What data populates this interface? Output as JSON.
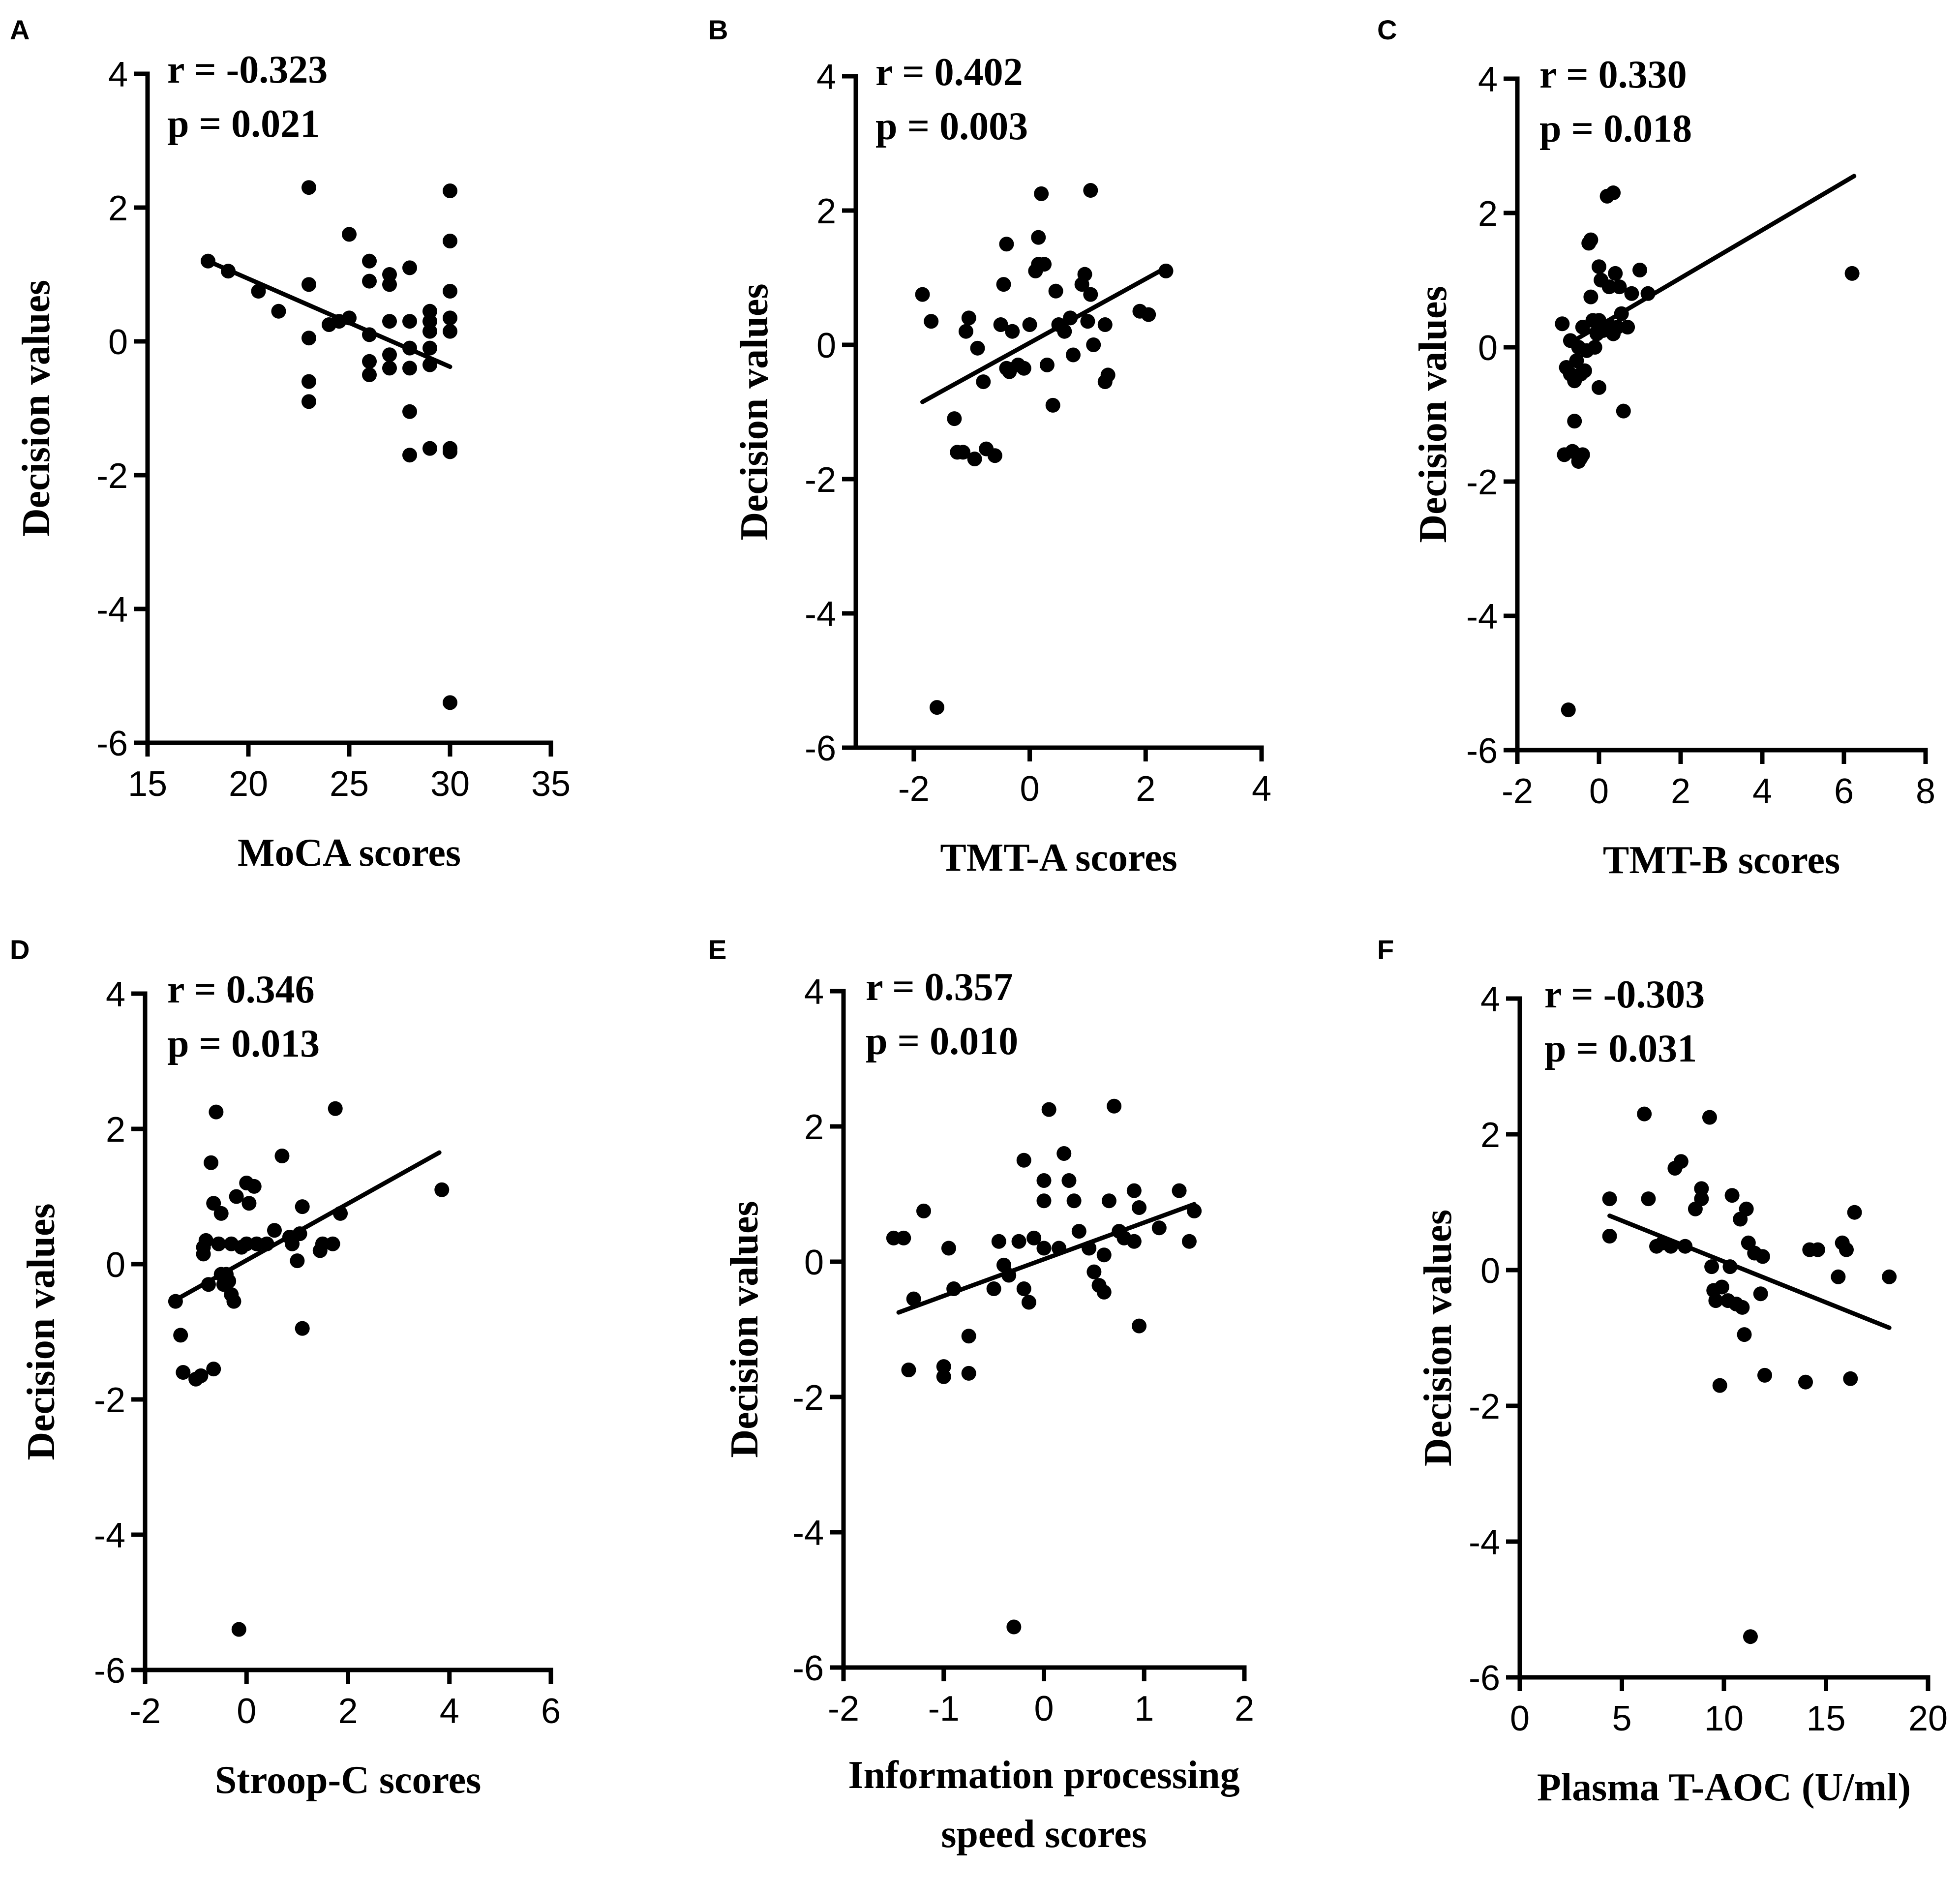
{
  "chart_data": [
    {
      "panel": "A",
      "type": "scatter",
      "r_text": "r = -0.323",
      "p_text": "p = 0.021",
      "xlabel": "MoCA scores",
      "ylabel": "Decision values",
      "xlim": [
        15,
        35
      ],
      "ylim": [
        -6,
        4
      ],
      "xticks": [
        15,
        20,
        25,
        30,
        35
      ],
      "yticks": [
        -6,
        -4,
        -2,
        0,
        2,
        4
      ],
      "regression": [
        [
          18,
          1.2
        ],
        [
          30,
          -0.38
        ]
      ],
      "points": [
        [
          18,
          1.2
        ],
        [
          19,
          1.05
        ],
        [
          20.5,
          0.75
        ],
        [
          21.5,
          0.45
        ],
        [
          23,
          2.3
        ],
        [
          23,
          0.85
        ],
        [
          23,
          0.05
        ],
        [
          23,
          -0.6
        ],
        [
          23,
          -0.9
        ],
        [
          24,
          0.25
        ],
        [
          24.5,
          0.3
        ],
        [
          25,
          1.6
        ],
        [
          25,
          0.35
        ],
        [
          26,
          1.2
        ],
        [
          26,
          0.9
        ],
        [
          26,
          0.1
        ],
        [
          26,
          -0.3
        ],
        [
          26,
          -0.5
        ],
        [
          27,
          1.0
        ],
        [
          27,
          0.85
        ],
        [
          27,
          0.3
        ],
        [
          27,
          -0.2
        ],
        [
          27,
          -0.4
        ],
        [
          28,
          1.1
        ],
        [
          28,
          0.3
        ],
        [
          28,
          -0.1
        ],
        [
          28,
          -0.4
        ],
        [
          28,
          -1.05
        ],
        [
          28,
          -1.7
        ],
        [
          29,
          0.45
        ],
        [
          29,
          0.3
        ],
        [
          29,
          0.15
        ],
        [
          29,
          -0.1
        ],
        [
          29,
          -0.35
        ],
        [
          29,
          -1.6
        ],
        [
          30,
          2.25
        ],
        [
          30,
          1.5
        ],
        [
          30,
          0.75
        ],
        [
          30,
          0.35
        ],
        [
          30,
          0.15
        ],
        [
          30,
          -1.6
        ],
        [
          30,
          -1.65
        ],
        [
          30,
          -5.4
        ]
      ]
    },
    {
      "panel": "B",
      "type": "scatter",
      "r_text": "r = 0.402",
      "p_text": "p = 0.003",
      "xlabel": "TMT-A scores",
      "ylabel": "Decision values",
      "xlim": [
        -3,
        4
      ],
      "ylim": [
        -6,
        4
      ],
      "xticks": [
        -2,
        0,
        2,
        4
      ],
      "yticks": [
        -6,
        -4,
        -2,
        0,
        2,
        4
      ],
      "regression": [
        [
          -1.85,
          -0.85
        ],
        [
          2.25,
          1.1
        ]
      ],
      "points": [
        [
          -1.85,
          0.75
        ],
        [
          -1.7,
          0.35
        ],
        [
          -1.6,
          -5.4
        ],
        [
          -1.3,
          -1.1
        ],
        [
          -1.25,
          -1.6
        ],
        [
          -1.15,
          -1.6
        ],
        [
          -1.1,
          0.2
        ],
        [
          -1.05,
          0.4
        ],
        [
          -0.95,
          -1.7
        ],
        [
          -0.9,
          -0.05
        ],
        [
          -0.8,
          -0.55
        ],
        [
          -0.75,
          -1.55
        ],
        [
          -0.6,
          -1.65
        ],
        [
          -0.5,
          0.3
        ],
        [
          -0.45,
          0.9
        ],
        [
          -0.4,
          1.5
        ],
        [
          -0.4,
          -0.35
        ],
        [
          -0.35,
          -0.4
        ],
        [
          -0.3,
          0.2
        ],
        [
          -0.2,
          -0.3
        ],
        [
          -0.1,
          -0.35
        ],
        [
          0,
          0.3
        ],
        [
          0.1,
          1.1
        ],
        [
          0.15,
          1.6
        ],
        [
          0.15,
          1.2
        ],
        [
          0.2,
          2.25
        ],
        [
          0.25,
          1.2
        ],
        [
          0.3,
          -0.3
        ],
        [
          0.4,
          -0.9
        ],
        [
          0.45,
          0.8
        ],
        [
          0.5,
          0.3
        ],
        [
          0.6,
          0.2
        ],
        [
          0.7,
          0.4
        ],
        [
          0.75,
          -0.15
        ],
        [
          0.9,
          0.9
        ],
        [
          0.95,
          1.05
        ],
        [
          1.0,
          0.35
        ],
        [
          1.05,
          0.75
        ],
        [
          1.05,
          2.3
        ],
        [
          1.1,
          0.0
        ],
        [
          1.3,
          0.3
        ],
        [
          1.3,
          -0.55
        ],
        [
          1.35,
          -0.45
        ],
        [
          1.9,
          0.5
        ],
        [
          2.05,
          0.45
        ],
        [
          2.35,
          1.1
        ]
      ]
    },
    {
      "panel": "C",
      "type": "scatter",
      "r_text": "r = 0.330",
      "p_text": "p = 0.018",
      "xlabel": "TMT-B scores",
      "ylabel": "Decision values",
      "xlim": [
        -2,
        8
      ],
      "ylim": [
        -6,
        4
      ],
      "xticks": [
        -2,
        0,
        2,
        4,
        6,
        8
      ],
      "yticks": [
        -6,
        -4,
        -2,
        0,
        2,
        4
      ],
      "regression": [
        [
          -0.75,
          0.05
        ],
        [
          6.25,
          2.55
        ]
      ],
      "points": [
        [
          -0.9,
          0.35
        ],
        [
          -0.85,
          -1.6
        ],
        [
          -0.8,
          -0.3
        ],
        [
          -0.75,
          -5.4
        ],
        [
          -0.7,
          -0.4
        ],
        [
          -0.7,
          0.1
        ],
        [
          -0.65,
          -1.55
        ],
        [
          -0.6,
          -1.1
        ],
        [
          -0.6,
          -0.5
        ],
        [
          -0.55,
          -0.2
        ],
        [
          -0.5,
          -1.7
        ],
        [
          -0.5,
          0.0
        ],
        [
          -0.45,
          -1.65
        ],
        [
          -0.45,
          -0.4
        ],
        [
          -0.4,
          -1.6
        ],
        [
          -0.4,
          0.3
        ],
        [
          -0.35,
          -0.35
        ],
        [
          -0.3,
          -0.05
        ],
        [
          -0.25,
          1.55
        ],
        [
          -0.2,
          0.75
        ],
        [
          -0.2,
          1.6
        ],
        [
          -0.15,
          0.4
        ],
        [
          -0.1,
          0.0
        ],
        [
          -0.05,
          0.2
        ],
        [
          0,
          1.2
        ],
        [
          0,
          0.4
        ],
        [
          0,
          -0.6
        ],
        [
          0.05,
          1.0
        ],
        [
          0.1,
          0.25
        ],
        [
          0.15,
          0.3
        ],
        [
          0.2,
          2.25
        ],
        [
          0.25,
          0.9
        ],
        [
          0.3,
          0.3
        ],
        [
          0.35,
          0.2
        ],
        [
          0.35,
          2.3
        ],
        [
          0.4,
          1.1
        ],
        [
          0.45,
          0.3
        ],
        [
          0.5,
          0.9
        ],
        [
          0.55,
          0.5
        ],
        [
          0.6,
          -0.95
        ],
        [
          0.7,
          0.3
        ],
        [
          0.8,
          0.8
        ],
        [
          1.0,
          1.15
        ],
        [
          1.2,
          0.8
        ],
        [
          6.2,
          1.1
        ]
      ]
    },
    {
      "panel": "D",
      "type": "scatter",
      "r_text": "r = 0.346",
      "p_text": "p = 0.013",
      "xlabel": "Stroop-C scores",
      "ylabel": "Decision values",
      "xlim": [
        -2,
        6
      ],
      "ylim": [
        -6,
        4
      ],
      "xticks": [
        -2,
        0,
        2,
        4,
        6
      ],
      "yticks": [
        -6,
        -4,
        -2,
        0,
        2,
        4
      ],
      "regression": [
        [
          -1.45,
          -0.55
        ],
        [
          3.8,
          1.65
        ]
      ],
      "points": [
        [
          -1.4,
          -0.55
        ],
        [
          -1.3,
          -1.05
        ],
        [
          -1.25,
          -1.6
        ],
        [
          -1.0,
          -1.7
        ],
        [
          -0.9,
          -1.65
        ],
        [
          -0.85,
          0.25
        ],
        [
          -0.85,
          0.15
        ],
        [
          -0.8,
          0.35
        ],
        [
          -0.75,
          -0.3
        ],
        [
          -0.7,
          1.5
        ],
        [
          -0.65,
          0.9
        ],
        [
          -0.65,
          -1.55
        ],
        [
          -0.6,
          2.25
        ],
        [
          -0.55,
          0.3
        ],
        [
          -0.5,
          -0.15
        ],
        [
          -0.5,
          0.75
        ],
        [
          -0.45,
          -0.3
        ],
        [
          -0.4,
          -0.15
        ],
        [
          -0.35,
          -0.25
        ],
        [
          -0.3,
          -0.45
        ],
        [
          -0.3,
          0.3
        ],
        [
          -0.25,
          -0.55
        ],
        [
          -0.2,
          1.0
        ],
        [
          -0.15,
          -5.4
        ],
        [
          -0.1,
          0.25
        ],
        [
          0,
          1.2
        ],
        [
          0,
          0.3
        ],
        [
          0.05,
          0.9
        ],
        [
          0.15,
          1.15
        ],
        [
          0.2,
          0.3
        ],
        [
          0.4,
          0.3
        ],
        [
          0.55,
          0.5
        ],
        [
          0.7,
          1.6
        ],
        [
          0.85,
          0.4
        ],
        [
          0.9,
          0.3
        ],
        [
          1.0,
          0.05
        ],
        [
          1.05,
          0.45
        ],
        [
          1.1,
          0.85
        ],
        [
          1.1,
          -0.95
        ],
        [
          1.45,
          0.2
        ],
        [
          1.5,
          0.3
        ],
        [
          1.7,
          0.3
        ],
        [
          1.75,
          2.3
        ],
        [
          1.85,
          0.75
        ],
        [
          3.85,
          1.1
        ]
      ]
    },
    {
      "panel": "E",
      "type": "scatter",
      "r_text": "r = 0.357",
      "p_text": "p = 0.010",
      "xlabel_lines": [
        "Information processing",
        "speed scores"
      ],
      "ylabel": "Decision values",
      "xlim": [
        -2,
        2
      ],
      "ylim": [
        -6,
        4
      ],
      "xticks": [
        -2,
        -1,
        0,
        1,
        2
      ],
      "yticks": [
        -6,
        -4,
        -2,
        0,
        2,
        4
      ],
      "regression": [
        [
          -1.45,
          -0.75
        ],
        [
          1.5,
          0.85
        ]
      ],
      "points": [
        [
          -1.5,
          0.35
        ],
        [
          -1.4,
          0.35
        ],
        [
          -1.3,
          -0.55
        ],
        [
          -1.35,
          -1.6
        ],
        [
          -1.2,
          0.75
        ],
        [
          -1.0,
          -1.55
        ],
        [
          -1.0,
          -1.7
        ],
        [
          -0.95,
          0.2
        ],
        [
          -0.9,
          -0.4
        ],
        [
          -0.75,
          -1.1
        ],
        [
          -0.75,
          -1.65
        ],
        [
          -0.5,
          -0.4
        ],
        [
          -0.45,
          0.3
        ],
        [
          -0.4,
          -0.05
        ],
        [
          -0.35,
          -0.2
        ],
        [
          -0.3,
          -5.4
        ],
        [
          -0.25,
          0.3
        ],
        [
          -0.2,
          1.5
        ],
        [
          -0.2,
          -0.4
        ],
        [
          -0.15,
          -0.6
        ],
        [
          -0.1,
          0.35
        ],
        [
          0,
          1.2
        ],
        [
          0,
          0.2
        ],
        [
          0,
          0.9
        ],
        [
          0.05,
          2.25
        ],
        [
          0.15,
          0.2
        ],
        [
          0.2,
          1.6
        ],
        [
          0.25,
          1.2
        ],
        [
          0.3,
          0.9
        ],
        [
          0.35,
          0.45
        ],
        [
          0.45,
          0.2
        ],
        [
          0.5,
          -0.15
        ],
        [
          0.55,
          -0.35
        ],
        [
          0.6,
          0.1
        ],
        [
          0.6,
          -0.45
        ],
        [
          0.65,
          0.9
        ],
        [
          0.7,
          2.3
        ],
        [
          0.75,
          0.45
        ],
        [
          0.8,
          0.35
        ],
        [
          0.9,
          1.05
        ],
        [
          0.9,
          0.3
        ],
        [
          0.95,
          0.8
        ],
        [
          0.95,
          -0.95
        ],
        [
          1.15,
          0.5
        ],
        [
          1.35,
          1.05
        ],
        [
          1.45,
          0.3
        ],
        [
          1.5,
          0.75
        ]
      ]
    },
    {
      "panel": "F",
      "type": "scatter",
      "r_text": "r = -0.303",
      "p_text": "p = 0.031",
      "xlabel": "Plasma T-AOC (U/ml)",
      "ylabel": "Decision values",
      "xlim": [
        0,
        20
      ],
      "ylim": [
        -6,
        4
      ],
      "xticks": [
        0,
        5,
        10,
        15,
        20
      ],
      "yticks": [
        -6,
        -4,
        -2,
        0,
        2,
        4
      ],
      "regression": [
        [
          4.4,
          0.8
        ],
        [
          18.1,
          -0.85
        ]
      ],
      "points": [
        [
          4.4,
          1.05
        ],
        [
          4.4,
          0.5
        ],
        [
          6.1,
          2.3
        ],
        [
          6.3,
          1.05
        ],
        [
          6.7,
          0.35
        ],
        [
          7.0,
          0.4
        ],
        [
          7.4,
          0.35
        ],
        [
          7.6,
          1.5
        ],
        [
          7.9,
          1.6
        ],
        [
          8.1,
          0.35
        ],
        [
          8.6,
          0.9
        ],
        [
          8.9,
          1.2
        ],
        [
          8.9,
          1.05
        ],
        [
          9.3,
          2.25
        ],
        [
          9.4,
          0.05
        ],
        [
          9.5,
          -0.3
        ],
        [
          9.6,
          -0.45
        ],
        [
          9.8,
          -1.7
        ],
        [
          9.9,
          -0.25
        ],
        [
          10.2,
          -0.45
        ],
        [
          10.3,
          0.05
        ],
        [
          10.6,
          -0.5
        ],
        [
          10.8,
          0.75
        ],
        [
          10.9,
          -0.55
        ],
        [
          11.0,
          -0.95
        ],
        [
          11.1,
          0.9
        ],
        [
          11.2,
          0.4
        ],
        [
          11.3,
          -5.4
        ],
        [
          11.5,
          0.25
        ],
        [
          11.8,
          -0.35
        ],
        [
          11.9,
          0.2
        ],
        [
          12.0,
          -1.55
        ],
        [
          14.0,
          -1.65
        ],
        [
          14.2,
          0.3
        ],
        [
          14.6,
          0.3
        ],
        [
          15.6,
          -0.1
        ],
        [
          15.8,
          0.4
        ],
        [
          16.0,
          0.3
        ],
        [
          16.2,
          -1.6
        ],
        [
          16.4,
          0.85
        ],
        [
          18.1,
          -0.1
        ],
        [
          10.4,
          1.1
        ]
      ]
    }
  ]
}
